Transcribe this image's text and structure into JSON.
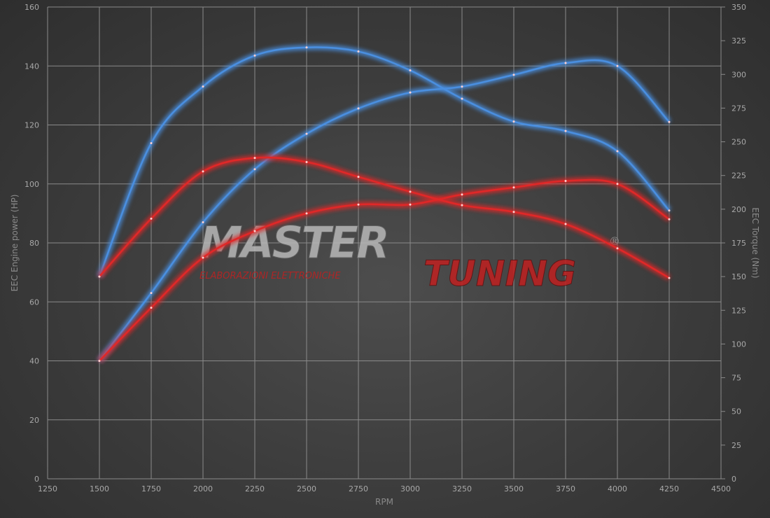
{
  "chart_data": {
    "type": "line",
    "xlabel": "RPM",
    "ylabel": "EEC Engine power (HP)",
    "y2label": "EEC Torque (Nm)",
    "xlim": [
      1250,
      4500
    ],
    "ylim": [
      0,
      160
    ],
    "y2lim": [
      0,
      350
    ],
    "xticks": [
      1250,
      1500,
      1750,
      2000,
      2250,
      2500,
      2750,
      3000,
      3250,
      3500,
      3750,
      4000,
      4250,
      4500
    ],
    "yticks": [
      0,
      20,
      40,
      60,
      80,
      100,
      120,
      140,
      160
    ],
    "y2ticks": [
      0,
      25,
      50,
      75,
      100,
      125,
      150,
      175,
      200,
      225,
      250,
      275,
      300,
      325,
      350
    ],
    "grid": true,
    "x": [
      1500,
      1750,
      2000,
      2250,
      2500,
      2750,
      3000,
      3250,
      3500,
      3750,
      4000,
      4250
    ],
    "series": [
      {
        "axis": "left",
        "color": "#4a8fe0",
        "values": [
          40,
          63,
          87,
          105,
          117,
          125.6,
          131,
          133,
          137,
          141,
          140,
          121
        ]
      },
      {
        "axis": "right",
        "color": "#4a8fe0",
        "values": [
          150,
          249,
          291,
          314,
          320,
          317,
          303,
          282,
          265,
          258,
          243,
          199
        ]
      },
      {
        "axis": "left",
        "color": "#e02828",
        "values": [
          40,
          58,
          75,
          84,
          90,
          93,
          93,
          96.4,
          98.8,
          101,
          100,
          88
        ]
      },
      {
        "axis": "right",
        "color": "#e02828",
        "values": [
          150,
          193,
          228,
          238,
          235,
          224,
          213,
          203,
          198,
          189,
          171,
          149
        ]
      }
    ]
  },
  "watermark": {
    "text_a": "MASTER",
    "text_b": "TUNING",
    "subtitle": "ELABORAZIONI ELETTRONICHE",
    "registered": "®"
  }
}
